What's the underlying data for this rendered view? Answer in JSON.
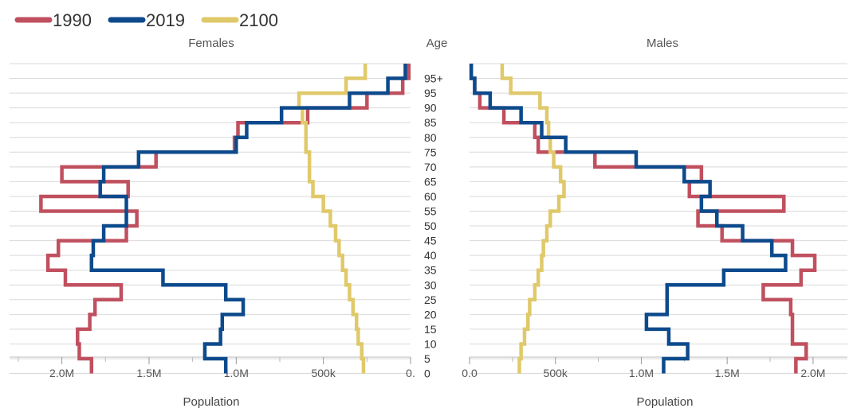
{
  "colors": {
    "1990": "#c0505f",
    "2019": "#0d4a8c",
    "2100": "#e0c96a",
    "grid": "#d9d9d9",
    "axis": "#555555",
    "text": "#444444"
  },
  "legend": [
    {
      "label": "1990",
      "color": "#c0505f"
    },
    {
      "label": "2019",
      "color": "#0d4a8c"
    },
    {
      "label": "2100",
      "color": "#e0c96a"
    }
  ],
  "chart_data": [
    {
      "type": "line",
      "title": "Females",
      "xlabel": "Population",
      "ylabel": "Age",
      "direction": "reversed",
      "xlim": [
        0,
        2300000
      ],
      "xticks": [
        0,
        500000,
        1000000,
        1500000,
        2000000
      ],
      "xtick_labels": [
        "0.",
        "500k",
        "1.0M",
        "1.5M",
        "2.0M"
      ],
      "age_groups": [
        "0",
        "5",
        "10",
        "15",
        "20",
        "25",
        "30",
        "35",
        "40",
        "45",
        "50",
        "55",
        "60",
        "65",
        "70",
        "75",
        "80",
        "85",
        "90",
        "95",
        "95+"
      ],
      "series": [
        {
          "name": "1990",
          "values": [
            1830000,
            1900000,
            1910000,
            1840000,
            1810000,
            1660000,
            1980000,
            2080000,
            2020000,
            1630000,
            1570000,
            2120000,
            1620000,
            2000000,
            1460000,
            1010000,
            990000,
            590000,
            250000,
            45000,
            10000
          ]
        },
        {
          "name": "2019",
          "values": [
            1060000,
            1180000,
            1090000,
            1080000,
            960000,
            1060000,
            1420000,
            1830000,
            1820000,
            1760000,
            1630000,
            1630000,
            1780000,
            1760000,
            1560000,
            1000000,
            940000,
            740000,
            350000,
            130000,
            30000
          ]
        },
        {
          "name": "2100",
          "values": [
            270000,
            280000,
            300000,
            310000,
            330000,
            350000,
            370000,
            390000,
            410000,
            430000,
            460000,
            500000,
            560000,
            580000,
            580000,
            600000,
            600000,
            620000,
            640000,
            370000,
            260000
          ]
        }
      ]
    },
    {
      "type": "line",
      "title": "Males",
      "xlabel": "Population",
      "ylabel": "Age",
      "xlim": [
        0,
        2200000
      ],
      "xticks": [
        0,
        500000,
        1000000,
        1500000,
        2000000
      ],
      "xtick_labels": [
        "0.0",
        "500k",
        "1.0M",
        "1.5M",
        "2.0M"
      ],
      "age_groups": [
        "0",
        "5",
        "10",
        "15",
        "20",
        "25",
        "30",
        "35",
        "40",
        "45",
        "50",
        "55",
        "60",
        "65",
        "70",
        "75",
        "80",
        "85",
        "90",
        "95",
        "95+"
      ],
      "series": [
        {
          "name": "1990",
          "values": [
            1900000,
            1960000,
            1880000,
            1880000,
            1870000,
            1710000,
            1930000,
            2010000,
            1880000,
            1470000,
            1330000,
            1830000,
            1280000,
            1350000,
            730000,
            400000,
            380000,
            200000,
            60000,
            30000,
            10000
          ]
        },
        {
          "name": "2019",
          "values": [
            1130000,
            1270000,
            1160000,
            1030000,
            1150000,
            1150000,
            1480000,
            1840000,
            1760000,
            1590000,
            1440000,
            1350000,
            1400000,
            1250000,
            970000,
            560000,
            420000,
            300000,
            120000,
            30000,
            10000
          ]
        },
        {
          "name": "2100",
          "values": [
            290000,
            300000,
            320000,
            340000,
            350000,
            380000,
            400000,
            420000,
            430000,
            450000,
            470000,
            520000,
            550000,
            530000,
            490000,
            470000,
            460000,
            450000,
            410000,
            240000,
            190000
          ]
        }
      ]
    }
  ],
  "center_header": "Age"
}
